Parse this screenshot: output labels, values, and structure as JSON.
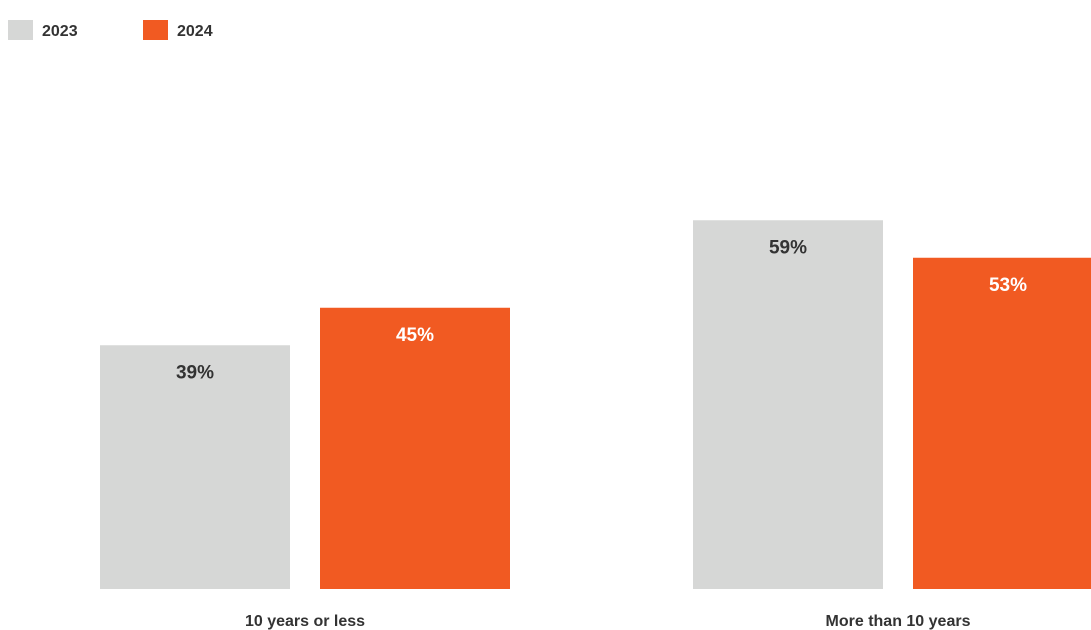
{
  "chart_data": {
    "type": "bar",
    "categories": [
      "10 years or less",
      "More than 10 years"
    ],
    "series": [
      {
        "name": "2023",
        "values": [
          39,
          59
        ],
        "labels": [
          "39%",
          "59%"
        ],
        "color": "#d6d7d6",
        "label_color": "#333333"
      },
      {
        "name": "2024",
        "values": [
          45,
          53
        ],
        "labels": [
          "45%",
          "53%"
        ],
        "color": "#f15a22",
        "label_color": "#ffffff"
      }
    ],
    "ylim": [
      0,
      100
    ],
    "grid": false,
    "legend_position": "top-left"
  }
}
